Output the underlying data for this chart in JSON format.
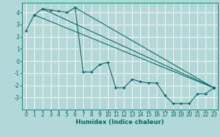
{
  "xlabel": "Humidex (Indice chaleur)",
  "background_color": "#b2d8d8",
  "grid_color": "#ffffff",
  "line_color": "#006666",
  "xlim": [
    -0.5,
    23.5
  ],
  "ylim": [
    -4.0,
    4.8
  ],
  "yticks": [
    -3,
    -2,
    -1,
    0,
    1,
    2,
    3,
    4
  ],
  "xticks": [
    0,
    1,
    2,
    3,
    4,
    5,
    6,
    7,
    8,
    9,
    10,
    11,
    12,
    13,
    14,
    15,
    16,
    17,
    18,
    19,
    20,
    21,
    22,
    23
  ],
  "main_x": [
    0,
    1,
    2,
    3,
    4,
    5,
    6,
    7,
    8,
    9,
    10,
    11,
    12,
    13,
    14,
    15,
    16,
    17,
    18,
    19,
    20,
    21,
    22,
    23
  ],
  "main_y": [
    2.5,
    3.8,
    4.3,
    4.2,
    4.1,
    4.0,
    4.4,
    -0.9,
    -0.9,
    -0.3,
    -0.1,
    -2.2,
    -2.2,
    -1.5,
    -1.7,
    -1.8,
    -1.8,
    -2.8,
    -3.5,
    -3.5,
    -3.5,
    -2.7,
    -2.7,
    -2.2
  ],
  "line2_x": [
    1,
    23
  ],
  "line2_y": [
    3.8,
    -2.2
  ],
  "line3_x": [
    2,
    23
  ],
  "line3_y": [
    4.3,
    -2.2
  ],
  "line4_x": [
    6,
    23
  ],
  "line4_y": [
    4.4,
    -2.2
  ],
  "marker": "+",
  "markersize": 3,
  "linewidth": 0.8,
  "tick_fontsize": 5.5,
  "xlabel_fontsize": 6.5
}
